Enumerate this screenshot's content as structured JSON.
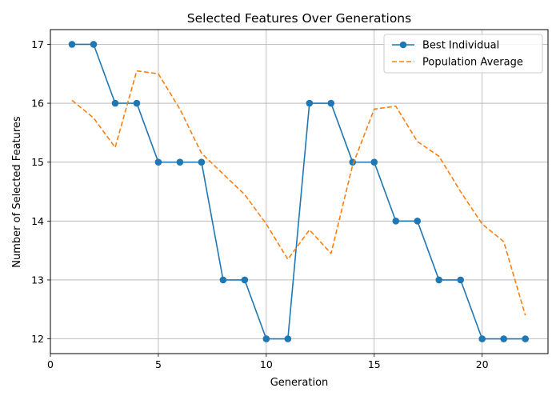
{
  "chart_data": {
    "type": "line",
    "title": "Selected Features Over Generations",
    "xlabel": "Generation",
    "ylabel": "Number of Selected Features",
    "xlim": [
      0,
      23.05
    ],
    "ylim": [
      11.75,
      17.25
    ],
    "xticks": [
      0,
      5,
      10,
      15,
      20
    ],
    "yticks": [
      12,
      13,
      14,
      15,
      16,
      17
    ],
    "grid": true,
    "legend_position": "top-right",
    "series": [
      {
        "name": "Best Individual",
        "color": "#1f77b4",
        "style": "solid-with-markers",
        "x": [
          1,
          2,
          3,
          4,
          5,
          6,
          7,
          8,
          9,
          10,
          11,
          12,
          13,
          14,
          15,
          16,
          17,
          18,
          19,
          20,
          21,
          22
        ],
        "y": [
          17,
          17,
          16,
          16,
          15,
          15,
          15,
          13,
          13,
          12,
          12,
          16,
          16,
          15,
          15,
          14,
          14,
          13,
          13,
          12,
          12,
          12
        ]
      },
      {
        "name": "Population Average",
        "color": "#ff7f0e",
        "style": "dashed",
        "x": [
          1,
          2,
          3,
          4,
          5,
          6,
          7,
          8,
          9,
          10,
          11,
          12,
          13,
          14,
          15,
          16,
          17,
          18,
          19,
          20,
          21,
          22
        ],
        "y": [
          16.05,
          15.75,
          15.25,
          16.55,
          16.5,
          15.9,
          15.15,
          14.8,
          14.45,
          13.95,
          13.35,
          13.85,
          13.45,
          14.95,
          15.9,
          15.95,
          15.35,
          15.1,
          14.5,
          13.95,
          13.65,
          12.4
        ]
      }
    ]
  }
}
